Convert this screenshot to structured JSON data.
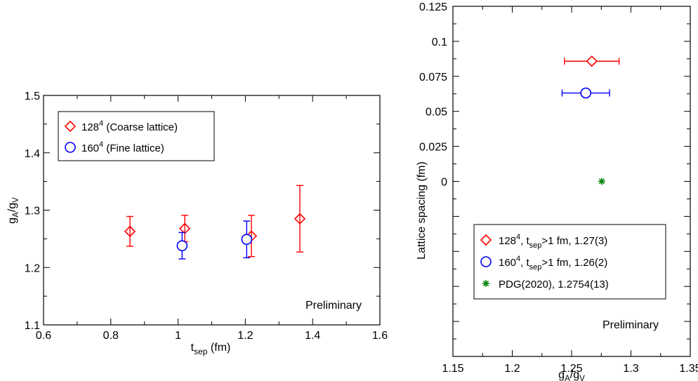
{
  "chart_data": [
    {
      "type": "scatter",
      "xlabel_main": "t",
      "xlabel_sub": "sep",
      "xlabel_unit": " (fm)",
      "ylabel": {
        "base1": "g",
        "sub1": "A",
        "slash": "/",
        "base2": "g",
        "sub2": "V"
      },
      "xlim": [
        0.6,
        1.6
      ],
      "ylim": [
        1.1,
        1.5
      ],
      "xticks": [
        0.6,
        0.8,
        1.0,
        1.2,
        1.4,
        1.6
      ],
      "xtick_labels": [
        "0.6",
        "0.8",
        "1",
        "1.2",
        "1.4",
        "1.6"
      ],
      "yticks": [
        1.1,
        1.2,
        1.3,
        1.4,
        1.5
      ],
      "ytick_labels": [
        "1.1",
        "1.2",
        "1.3",
        "1.4",
        "1.5"
      ],
      "annotation": "Preliminary",
      "legend": [
        {
          "base": "128",
          "sup": "4",
          "text": " (Coarse lattice)",
          "marker": "diamond",
          "color": "#ff0000"
        },
        {
          "base": "160",
          "sup": "4",
          "text": " (Fine lattice)",
          "marker": "circle",
          "color": "#0000ff"
        }
      ],
      "series": [
        {
          "name": "128^4 (Coarse lattice)",
          "marker": "diamond",
          "color": "#ff0000",
          "points": [
            {
              "x": 0.857,
              "y": 1.263,
              "err": 0.026
            },
            {
              "x": 1.02,
              "y": 1.268,
              "err": 0.023
            },
            {
              "x": 1.218,
              "y": 1.255,
              "err": 0.036
            },
            {
              "x": 1.362,
              "y": 1.285,
              "err": 0.058
            }
          ]
        },
        {
          "name": "160^4 (Fine lattice)",
          "marker": "circle",
          "color": "#0000ff",
          "points": [
            {
              "x": 1.012,
              "y": 1.238,
              "err": 0.023
            },
            {
              "x": 1.204,
              "y": 1.249,
              "err": 0.032
            }
          ]
        }
      ]
    },
    {
      "type": "scatter",
      "xlabel": {
        "base1": "g",
        "sub1": "A",
        "slash": "/",
        "base2": "g",
        "sub2": "V"
      },
      "ylabel": "Lattice spacing (fm)",
      "xlim": [
        1.15,
        1.35
      ],
      "ylim": [
        -0.125,
        0.125
      ],
      "xticks": [
        1.15,
        1.2,
        1.25,
        1.3,
        1.35
      ],
      "xtick_labels": [
        "1.15",
        "1.2",
        "1.25",
        "1.3",
        "1.35"
      ],
      "yticks": [
        0,
        0.025,
        0.05,
        0.075,
        0.1,
        0.125
      ],
      "ytick_labels": [
        "0",
        "0.025",
        "0.05",
        "0.075",
        "0.1",
        "0.125"
      ],
      "annotation": "Preliminary",
      "legend": [
        {
          "base": "128",
          "sup": "4",
          "mid": ", t",
          "sub": "sep",
          "text": ">1 fm, 1.27(3)",
          "marker": "diamond",
          "color": "#ff0000"
        },
        {
          "base": "160",
          "sup": "4",
          "mid": ", t",
          "sub": "sep",
          "text": ">1 fm, 1.26(2)",
          "marker": "circle",
          "color": "#0000ff"
        },
        {
          "base": "PDG(2020), 1.2754(13)",
          "sup": "",
          "mid": "",
          "sub": "",
          "text": "",
          "marker": "star",
          "color": "#008000"
        }
      ],
      "series": [
        {
          "name": "128^4, t_sep>1 fm",
          "marker": "diamond",
          "color": "#ff0000",
          "points": [
            {
              "x": 1.267,
              "y": 0.0858,
              "xerr": 0.023
            }
          ]
        },
        {
          "name": "160^4, t_sep>1 fm",
          "marker": "circle",
          "color": "#0000ff",
          "points": [
            {
              "x": 1.262,
              "y": 0.0631,
              "xerr": 0.02
            }
          ]
        },
        {
          "name": "PDG(2020)",
          "marker": "star",
          "color": "#008000",
          "points": [
            {
              "x": 1.2754,
              "y": 0.0,
              "xerr": 0.0013
            }
          ]
        }
      ]
    }
  ]
}
